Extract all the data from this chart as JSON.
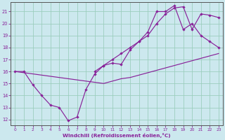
{
  "xlabel": "Windchill (Refroidissement éolien,°C)",
  "bg_color": "#cce8ee",
  "grid_color": "#99ccbb",
  "line_color": "#882299",
  "spine_color": "#555555",
  "xlim_min": -0.5,
  "xlim_max": 23.5,
  "ylim_min": 11.5,
  "ylim_max": 21.8,
  "xticks": [
    0,
    1,
    2,
    3,
    4,
    5,
    6,
    7,
    8,
    9,
    10,
    11,
    12,
    13,
    14,
    15,
    16,
    17,
    18,
    19,
    20,
    21,
    22,
    23
  ],
  "yticks": [
    12,
    13,
    14,
    15,
    16,
    17,
    18,
    19,
    20,
    21
  ],
  "curve_wiggly_x": [
    0,
    1,
    2,
    3,
    4,
    5,
    6,
    7,
    8,
    9,
    10,
    11,
    12,
    13,
    14,
    15,
    16,
    17,
    18,
    19,
    20,
    21,
    22,
    23
  ],
  "curve_wiggly_y": [
    16,
    16,
    14.9,
    14.0,
    13.2,
    13.0,
    11.9,
    12.2,
    14.5,
    15.8,
    16.5,
    16.7,
    16.6,
    17.8,
    18.5,
    19.3,
    21.0,
    21.0,
    21.5,
    19.5,
    20.0,
    19.0,
    18.5,
    18.0
  ],
  "curve_upper_x": [
    9,
    10,
    11,
    12,
    13,
    14,
    15,
    16,
    17,
    18,
    19,
    20,
    21,
    22,
    23
  ],
  "curve_upper_y": [
    16.0,
    16.5,
    17.0,
    17.5,
    18.0,
    18.5,
    19.0,
    20.0,
    20.8,
    21.3,
    21.4,
    19.5,
    20.8,
    20.7,
    20.5
  ],
  "curve_diagonal_x": [
    0,
    1,
    2,
    3,
    4,
    5,
    6,
    7,
    8,
    9,
    10,
    11,
    12,
    13,
    14,
    15,
    16,
    17,
    18,
    19,
    20,
    21,
    22,
    23
  ],
  "curve_diagonal_y": [
    16.0,
    15.9,
    15.8,
    15.7,
    15.6,
    15.5,
    15.4,
    15.3,
    15.2,
    15.1,
    15.0,
    15.2,
    15.4,
    15.5,
    15.7,
    15.9,
    16.1,
    16.3,
    16.5,
    16.7,
    16.9,
    17.1,
    17.3,
    17.5
  ]
}
